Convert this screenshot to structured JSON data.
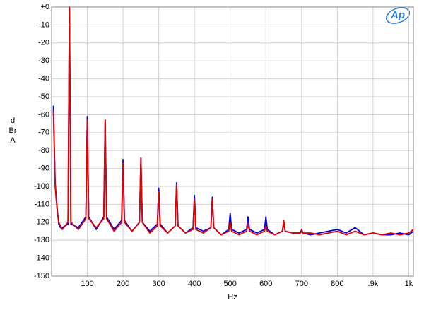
{
  "chart_data": {
    "type": "line",
    "x_label": "Hz",
    "y_label": "dBr A",
    "logo_text": "Ap",
    "xlim": [
      0,
      1013
    ],
    "ylim": [
      -150,
      0
    ],
    "xticks": [
      100,
      200,
      300,
      400,
      500,
      600,
      700,
      800,
      {
        "value": 900,
        "label": ".9k"
      },
      {
        "value": 1000,
        "label": "1k"
      }
    ],
    "yticks": [
      {
        "value": 0,
        "label": "+0"
      },
      -10,
      -20,
      -30,
      -40,
      -50,
      -60,
      -70,
      -80,
      -90,
      -100,
      -110,
      -120,
      -130,
      -140,
      -150
    ],
    "grid": true,
    "x": [
      5,
      10,
      15,
      20,
      25,
      30,
      46,
      50,
      54,
      75,
      96,
      100,
      104,
      125,
      146,
      150,
      154,
      175,
      196,
      200,
      204,
      225,
      246,
      250,
      254,
      275,
      296,
      300,
      304,
      325,
      346,
      350,
      354,
      375,
      396,
      400,
      404,
      425,
      446,
      450,
      454,
      475,
      496,
      500,
      504,
      525,
      546,
      550,
      554,
      575,
      596,
      600,
      604,
      625,
      646,
      650,
      654,
      675,
      696,
      700,
      704,
      725,
      750,
      775,
      800,
      825,
      850,
      875,
      900,
      925,
      950,
      975,
      1000,
      1013
    ],
    "series": [
      {
        "color": "#0000e0",
        "values": [
          -55,
          -98,
          -111,
          -121,
          -123,
          -123,
          -121,
          -1,
          -121,
          -123,
          -117,
          -61,
          -117,
          -124,
          -117,
          -63,
          -117,
          -124,
          -119,
          -85,
          -119,
          -125,
          -120,
          -84,
          -120,
          -125,
          -121,
          -101,
          -121,
          -126,
          -122,
          -98,
          -122,
          -126,
          -123,
          -105,
          -123,
          -125,
          -123,
          -106,
          -123,
          -127,
          -124,
          -115,
          -124,
          -126,
          -124,
          -117,
          -124,
          -126,
          -124,
          -117,
          -124,
          -127,
          -125,
          -120,
          -125,
          -126,
          -126,
          -125,
          -126,
          -127,
          -126,
          -125,
          -124,
          -126,
          -123,
          -127,
          -126,
          -127,
          -127,
          -126,
          -127,
          -125
        ]
      },
      {
        "color": "#e00000",
        "values": [
          -58,
          -100,
          -112,
          -120,
          -122,
          -124,
          -120,
          0,
          -120,
          -124,
          -118,
          -63,
          -118,
          -123,
          -118,
          -63,
          -118,
          -125,
          -120,
          -87,
          -120,
          -125,
          -120,
          -84,
          -120,
          -126,
          -122,
          -103,
          -122,
          -126,
          -122,
          -99,
          -122,
          -126,
          -124,
          -107,
          -124,
          -126,
          -123,
          -107,
          -123,
          -127,
          -125,
          -120,
          -125,
          -127,
          -125,
          -121,
          -125,
          -127,
          -125,
          -122,
          -125,
          -127,
          -125,
          -119,
          -125,
          -126,
          -126,
          -124,
          -126,
          -126,
          -127,
          -126,
          -125,
          -127,
          -125,
          -127,
          -126,
          -127,
          -126,
          -127,
          -126,
          -124
        ]
      }
    ]
  }
}
